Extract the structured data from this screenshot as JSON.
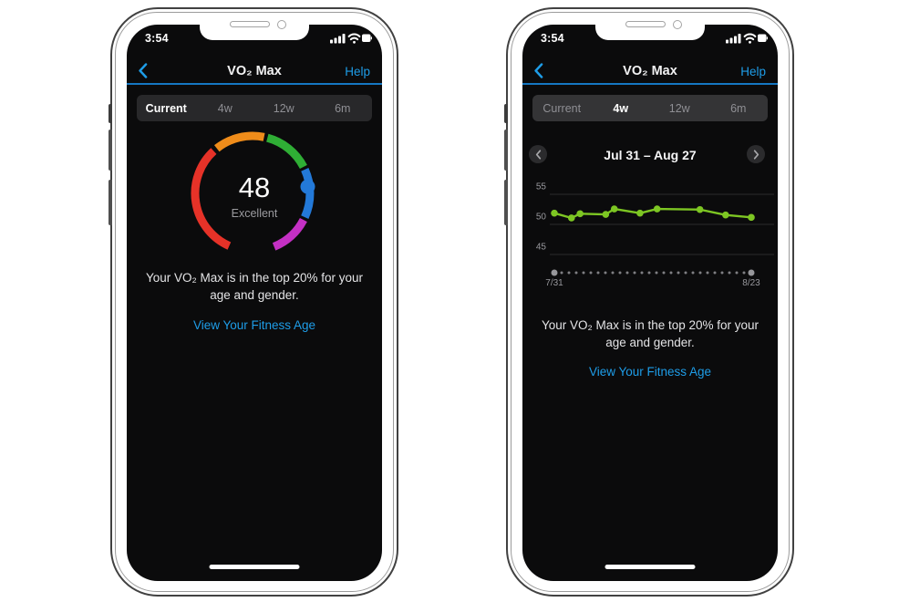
{
  "colors": {
    "accent": "#1e9de8",
    "header_underline": "#1577c2",
    "screen_bg": "#0b0b0c",
    "muted_text": "#9b9b9f",
    "chart_green": "#7dc623",
    "gridline": "#2b2b2b",
    "gauge": {
      "red": "#e63228",
      "orange": "#ef8c1a",
      "green": "#2fae35",
      "blue": "#2379d8",
      "magenta": "#c430c4"
    }
  },
  "phones": {
    "left": {
      "time": "3:54",
      "header": {
        "title": "VO₂ Max",
        "help": "Help"
      },
      "tabs": [
        "Current",
        "4w",
        "12w",
        "6m"
      ],
      "selected_tab": "Current",
      "gauge": {
        "value": "48",
        "rating": "Excellent"
      },
      "description": "Your VO₂ Max is in the top 20% for your age and gender.",
      "link": "View Your Fitness Age"
    },
    "right": {
      "time": "3:54",
      "header": {
        "title": "VO₂ Max",
        "help": "Help"
      },
      "tabs": [
        "Current",
        "4w",
        "12w",
        "6m"
      ],
      "selected_tab": "4w",
      "date_range": "Jul 31 – Aug 27",
      "scrubber": {
        "start": "7/31",
        "end": "8/23"
      },
      "description": "Your VO₂ Max is in the top 20% for your age and gender.",
      "link": "View Your Fitness Age"
    }
  },
  "chart_data": [
    {
      "type": "gauge",
      "title": "VO₂ Max current",
      "value": 48,
      "rating": "Excellent",
      "segment_colors": [
        "#e63228",
        "#ef8c1a",
        "#2fae35",
        "#2379d8",
        "#c430c4"
      ],
      "indicator_zone_index": 3,
      "indicator_angle_deg": 83
    },
    {
      "type": "line",
      "title": "Jul 31 – Aug 27",
      "x": [
        "Jul 31",
        "Aug 2",
        "Aug 3",
        "Aug 6",
        "Aug 7",
        "Aug 10",
        "Aug 12",
        "Aug 17",
        "Aug 20",
        "Aug 23"
      ],
      "day_offsets": [
        0,
        2,
        3,
        6,
        7,
        10,
        12,
        17,
        20,
        23
      ],
      "day_span": 23,
      "values": [
        50.5,
        49.7,
        50.4,
        50.3,
        51.2,
        50.5,
        51.2,
        51.1,
        50.2,
        49.8
      ],
      "y_ticks": [
        55,
        50,
        45
      ],
      "ylim": [
        45,
        55
      ],
      "line_color": "#7dc623",
      "grid": "horizontal",
      "legend": "none",
      "x_start_label": "7/31",
      "x_end_label": "8/23"
    }
  ]
}
